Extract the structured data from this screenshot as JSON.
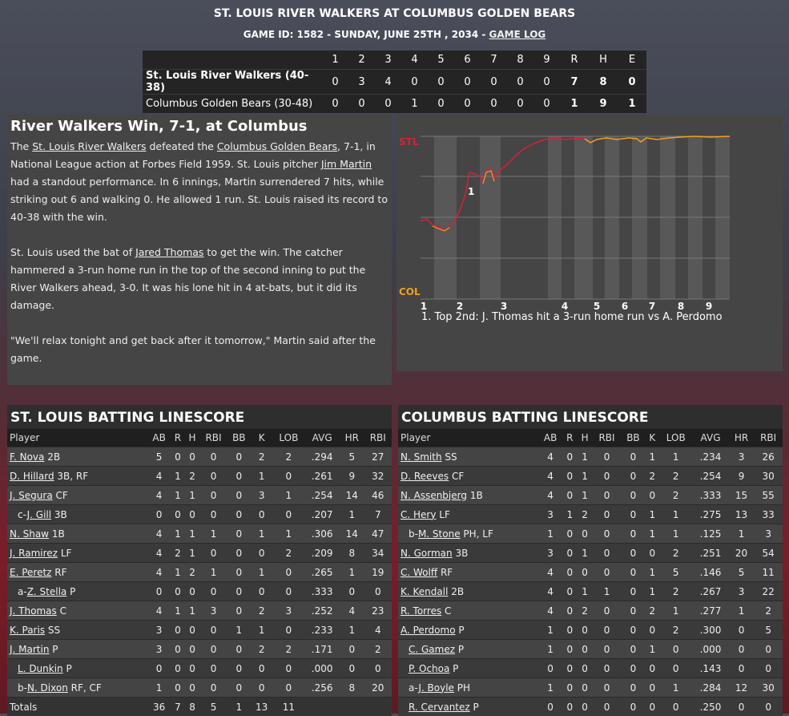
{
  "header": {
    "title": "ST. LOUIS RIVER WALKERS AT COLUMBUS GOLDEN BEARS",
    "game_info": "GAME ID: 1582 - SUNDAY, JUNE 25TH , 2034 - ",
    "game_log_link": "GAME LOG"
  },
  "linescore": {
    "innings": [
      "1",
      "2",
      "3",
      "4",
      "5",
      "6",
      "7",
      "8",
      "9"
    ],
    "rhe_headers": [
      "R",
      "H",
      "E"
    ],
    "teams": [
      {
        "name": "St. Louis River Walkers (40-38)",
        "runs": [
          "0",
          "3",
          "4",
          "0",
          "0",
          "0",
          "0",
          "0",
          "0"
        ],
        "rhe": [
          "7",
          "8",
          "0"
        ]
      },
      {
        "name": "Columbus Golden Bears (30-48)",
        "runs": [
          "0",
          "0",
          "0",
          "1",
          "0",
          "0",
          "0",
          "0",
          "0"
        ],
        "rhe": [
          "1",
          "9",
          "1"
        ]
      }
    ]
  },
  "recap": {
    "headline": "River Walkers Win, 7-1, at Columbus",
    "p1_a": "The ",
    "p1_link1": "St. Louis River Walkers",
    "p1_b": " defeated the ",
    "p1_link2": "Columbus Golden Bears",
    "p1_c": ", 7-1, in National League action at Forbes Field 1959. St. Louis pitcher ",
    "p1_link3": "Jim Martin",
    "p1_d": " had a standout performance. In 6 innings, Martin surrendered 7 hits, while striking out 6 and walking 0. He allowed 1 run. St. Louis raised its record to 40-38 with the win.",
    "p2_a": "St. Louis used the bat of ",
    "p2_link": "Jared Thomas",
    "p2_b": " to get the win. The catcher hammered a 3-run home run in the top of the second inning to put the River Walkers ahead, 3-0. It was his lone hit in 4 at-bats, but it did its damage.",
    "p3": "\"We'll relax tonight and get back after it tomorrow,\" Martin said after the game."
  },
  "win_prob": {
    "top_label": "STL",
    "bottom_label": "COL",
    "x_labels": [
      "1",
      "2",
      "3",
      "4",
      "5",
      "6",
      "7",
      "8",
      "9"
    ],
    "marker_label": "1",
    "note": "1. Top 2nd: J. Thomas hit a 3-run home run vs A. Perdomo",
    "colors": {
      "stl": "#d8203a",
      "col": "#f0a020"
    }
  },
  "batting": {
    "headers": [
      "Player",
      "AB",
      "R",
      "H",
      "RBI",
      "BB",
      "K",
      "LOB",
      "AVG",
      "HR",
      "RBI"
    ],
    "stl": {
      "title": "ST. LOUIS BATTING LINESCORE",
      "rows": [
        {
          "prefix": "",
          "name": "F. Nova",
          "pos": "2B",
          "sub": false,
          "stats": [
            "5",
            "0",
            "0",
            "0",
            "0",
            "2",
            "2",
            ".294",
            "5",
            "27"
          ]
        },
        {
          "prefix": "",
          "name": "D. Hillard",
          "pos": "3B, RF",
          "sub": false,
          "stats": [
            "4",
            "1",
            "2",
            "0",
            "0",
            "1",
            "0",
            ".261",
            "9",
            "32"
          ]
        },
        {
          "prefix": "",
          "name": "J. Segura",
          "pos": "CF",
          "sub": false,
          "stats": [
            "4",
            "1",
            "1",
            "0",
            "0",
            "3",
            "1",
            ".254",
            "14",
            "46"
          ]
        },
        {
          "prefix": "c-",
          "name": "J. Gill",
          "pos": "3B",
          "sub": true,
          "stats": [
            "0",
            "0",
            "0",
            "0",
            "0",
            "0",
            "0",
            ".207",
            "1",
            "7"
          ]
        },
        {
          "prefix": "",
          "name": "N. Shaw",
          "pos": "1B",
          "sub": false,
          "stats": [
            "4",
            "1",
            "1",
            "1",
            "0",
            "1",
            "1",
            ".306",
            "14",
            "47"
          ]
        },
        {
          "prefix": "",
          "name": "J. Ramirez",
          "pos": "LF",
          "sub": false,
          "stats": [
            "4",
            "2",
            "1",
            "0",
            "0",
            "0",
            "2",
            ".209",
            "8",
            "34"
          ]
        },
        {
          "prefix": "",
          "name": "E. Peretz",
          "pos": "RF",
          "sub": false,
          "stats": [
            "4",
            "1",
            "2",
            "1",
            "0",
            "1",
            "0",
            ".265",
            "1",
            "19"
          ]
        },
        {
          "prefix": "a-",
          "name": "Z. Stella",
          "pos": "P",
          "sub": true,
          "stats": [
            "0",
            "0",
            "0",
            "0",
            "0",
            "0",
            "0",
            ".333",
            "0",
            "0"
          ]
        },
        {
          "prefix": "",
          "name": "J. Thomas",
          "pos": "C",
          "sub": false,
          "stats": [
            "4",
            "1",
            "1",
            "3",
            "0",
            "2",
            "3",
            ".252",
            "4",
            "23"
          ]
        },
        {
          "prefix": "",
          "name": "K. Paris",
          "pos": "SS",
          "sub": false,
          "stats": [
            "3",
            "0",
            "0",
            "0",
            "1",
            "1",
            "0",
            ".233",
            "1",
            "4"
          ]
        },
        {
          "prefix": "",
          "name": "J. Martin",
          "pos": "P",
          "sub": false,
          "stats": [
            "3",
            "0",
            "0",
            "0",
            "0",
            "2",
            "2",
            ".171",
            "0",
            "2"
          ]
        },
        {
          "prefix": "",
          "name": "L. Dunkin",
          "pos": "P",
          "sub": true,
          "stats": [
            "0",
            "0",
            "0",
            "0",
            "0",
            "0",
            "0",
            ".000",
            "0",
            "0"
          ]
        },
        {
          "prefix": "b-",
          "name": "N. Dixon",
          "pos": "RF, CF",
          "sub": true,
          "stats": [
            "1",
            "0",
            "0",
            "0",
            "0",
            "0",
            "0",
            ".256",
            "8",
            "20"
          ]
        }
      ],
      "totals_label": "Totals",
      "totals": [
        "36",
        "7",
        "8",
        "5",
        "1",
        "13",
        "11",
        "",
        "",
        ""
      ]
    },
    "col": {
      "title": "COLUMBUS BATTING LINESCORE",
      "rows": [
        {
          "prefix": "",
          "name": "N. Smith",
          "pos": "SS",
          "sub": false,
          "stats": [
            "4",
            "0",
            "1",
            "0",
            "0",
            "1",
            "1",
            ".234",
            "3",
            "26"
          ]
        },
        {
          "prefix": "",
          "name": "D. Reeves",
          "pos": "CF",
          "sub": false,
          "stats": [
            "4",
            "0",
            "1",
            "0",
            "0",
            "2",
            "2",
            ".254",
            "9",
            "30"
          ]
        },
        {
          "prefix": "",
          "name": "N. Assenbjerg",
          "pos": "1B",
          "sub": false,
          "stats": [
            "4",
            "0",
            "1",
            "0",
            "0",
            "0",
            "2",
            ".333",
            "15",
            "55"
          ]
        },
        {
          "prefix": "",
          "name": "C. Hery",
          "pos": "LF",
          "sub": false,
          "stats": [
            "3",
            "1",
            "2",
            "0",
            "0",
            "1",
            "1",
            ".275",
            "13",
            "33"
          ]
        },
        {
          "prefix": "b-",
          "name": "M. Stone",
          "pos": "PH, LF",
          "sub": true,
          "stats": [
            "1",
            "0",
            "0",
            "0",
            "0",
            "1",
            "1",
            ".125",
            "1",
            "3"
          ]
        },
        {
          "prefix": "",
          "name": "N. Gorman",
          "pos": "3B",
          "sub": false,
          "stats": [
            "3",
            "0",
            "1",
            "0",
            "0",
            "0",
            "2",
            ".251",
            "20",
            "54"
          ]
        },
        {
          "prefix": "",
          "name": "C. Wolff",
          "pos": "RF",
          "sub": false,
          "stats": [
            "4",
            "0",
            "0",
            "0",
            "0",
            "1",
            "5",
            ".146",
            "5",
            "11"
          ]
        },
        {
          "prefix": "",
          "name": "K. Kendall",
          "pos": "2B",
          "sub": false,
          "stats": [
            "4",
            "0",
            "1",
            "1",
            "0",
            "1",
            "2",
            ".267",
            "3",
            "22"
          ]
        },
        {
          "prefix": "",
          "name": "R. Torres",
          "pos": "C",
          "sub": false,
          "stats": [
            "4",
            "0",
            "2",
            "0",
            "0",
            "2",
            "1",
            ".277",
            "1",
            "2"
          ]
        },
        {
          "prefix": "",
          "name": "A. Perdomo",
          "pos": "P",
          "sub": false,
          "stats": [
            "1",
            "0",
            "0",
            "0",
            "0",
            "0",
            "2",
            ".300",
            "0",
            "5"
          ]
        },
        {
          "prefix": "",
          "name": "C. Gamez",
          "pos": "P",
          "sub": true,
          "stats": [
            "1",
            "0",
            "0",
            "0",
            "0",
            "1",
            "0",
            ".000",
            "0",
            "0"
          ]
        },
        {
          "prefix": "",
          "name": "P. Ochoa",
          "pos": "P",
          "sub": true,
          "stats": [
            "0",
            "0",
            "0",
            "0",
            "0",
            "0",
            "0",
            ".143",
            "0",
            "0"
          ]
        },
        {
          "prefix": "a-",
          "name": "J. Boyle",
          "pos": "PH",
          "sub": true,
          "stats": [
            "1",
            "0",
            "0",
            "0",
            "0",
            "0",
            "1",
            ".284",
            "12",
            "30"
          ]
        },
        {
          "prefix": "",
          "name": "R. Cervantez",
          "pos": "P",
          "sub": true,
          "stats": [
            "0",
            "0",
            "0",
            "0",
            "0",
            "0",
            "0",
            ".250",
            "0",
            "0"
          ]
        }
      ]
    }
  }
}
